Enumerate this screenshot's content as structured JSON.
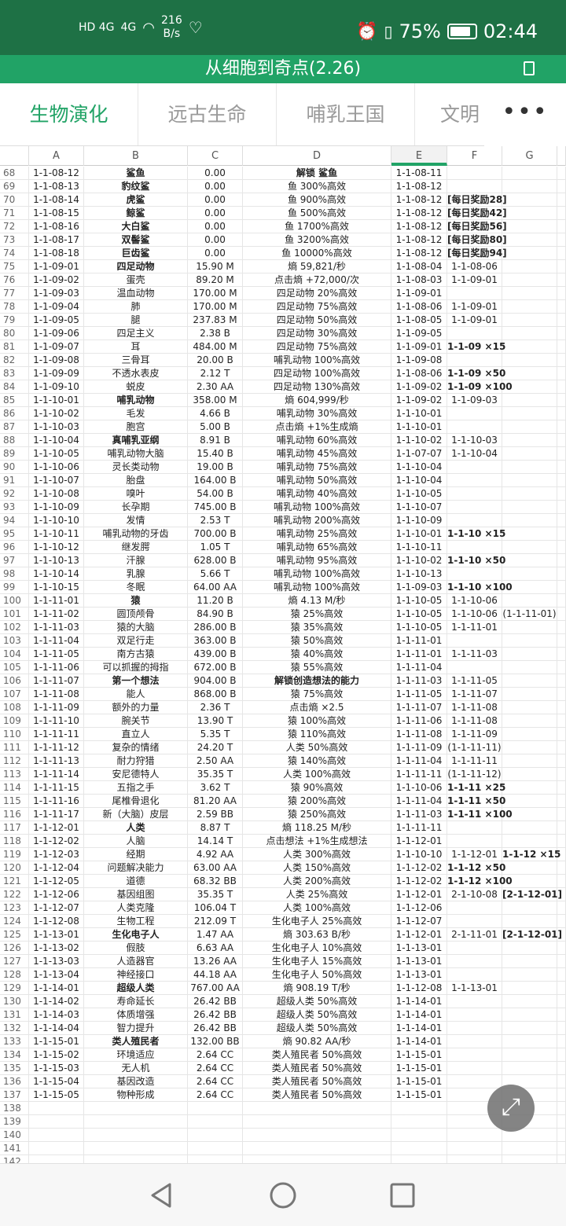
{
  "status_bar": {
    "network_left": "HD 4G",
    "network_right": "4G",
    "speed_value": "216",
    "speed_unit": "B/s",
    "battery": "75%",
    "battery_level": 0.75,
    "time": "02:44"
  },
  "title": "从细胞到奇点(2.26)",
  "tabs": [
    {
      "label": "生物演化",
      "active": true
    },
    {
      "label": "远古生命"
    },
    {
      "label": "哺乳王国"
    },
    {
      "label": "文明"
    }
  ],
  "more_label": "•••",
  "columns": [
    "A",
    "B",
    "C",
    "D",
    "E",
    "F",
    "G"
  ],
  "selected_column": "E",
  "colors": {
    "accent": "#21a366",
    "status_bar": "#1e7145"
  },
  "rows": [
    {
      "n": "68",
      "v": [
        "1-1-08-12",
        "鲨鱼",
        "0.00",
        "解锁 鲨鱼",
        "1-1-08-11",
        "",
        ""
      ],
      "b": [
        1,
        3
      ]
    },
    {
      "n": "69",
      "v": [
        "1-1-08-13",
        "豹纹鲨",
        "0.00",
        "鱼 300%高效",
        "1-1-08-12",
        "",
        ""
      ],
      "b": [
        1
      ]
    },
    {
      "n": "70",
      "v": [
        "1-1-08-14",
        "虎鲨",
        "0.00",
        "鱼 900%高效",
        "1-1-08-12",
        "[每日奖励28]",
        ""
      ],
      "b": [
        1,
        5
      ]
    },
    {
      "n": "71",
      "v": [
        "1-1-08-15",
        "鲸鲨",
        "0.00",
        "鱼 500%高效",
        "1-1-08-12",
        "[每日奖励42]",
        ""
      ],
      "b": [
        1,
        5
      ]
    },
    {
      "n": "72",
      "v": [
        "1-1-08-16",
        "大白鲨",
        "0.00",
        "鱼 1700%高效",
        "1-1-08-12",
        "[每日奖励56]",
        ""
      ],
      "b": [
        1,
        5
      ]
    },
    {
      "n": "73",
      "v": [
        "1-1-08-17",
        "双髻鲨",
        "0.00",
        "鱼 3200%高效",
        "1-1-08-12",
        "[每日奖励80]",
        ""
      ],
      "b": [
        1,
        5
      ]
    },
    {
      "n": "74",
      "v": [
        "1-1-08-18",
        "巨齿鲨",
        "0.00",
        "鱼 10000%高效",
        "1-1-08-12",
        "[每日奖励94]",
        ""
      ],
      "b": [
        1,
        5
      ]
    },
    {
      "n": "75",
      "v": [
        "1-1-09-01",
        "四足动物",
        "15.90 M",
        "熵 59,821/秒",
        "1-1-08-04",
        "1-1-08-06",
        ""
      ],
      "b": [
        1
      ]
    },
    {
      "n": "76",
      "v": [
        "1-1-09-02",
        "蛋壳",
        "89.20 M",
        "点击熵 +72,000/次",
        "1-1-08-03",
        "1-1-09-01",
        ""
      ]
    },
    {
      "n": "77",
      "v": [
        "1-1-09-03",
        "温血动物",
        "170.00 M",
        "四足动物 20%高效",
        "1-1-09-01",
        "",
        ""
      ]
    },
    {
      "n": "78",
      "v": [
        "1-1-09-04",
        "肺",
        "170.00 M",
        "四足动物 75%高效",
        "1-1-08-06",
        "1-1-09-01",
        ""
      ]
    },
    {
      "n": "79",
      "v": [
        "1-1-09-05",
        "腿",
        "237.83 M",
        "四足动物 50%高效",
        "1-1-08-05",
        "1-1-09-01",
        ""
      ]
    },
    {
      "n": "80",
      "v": [
        "1-1-09-06",
        "四足主义",
        "2.38 B",
        "四足动物 30%高效",
        "1-1-09-05",
        "",
        ""
      ]
    },
    {
      "n": "81",
      "v": [
        "1-1-09-07",
        "耳",
        "484.00 M",
        "四足动物 75%高效",
        "1-1-09-01",
        "1-1-09 ×15",
        ""
      ],
      "b": [
        5
      ]
    },
    {
      "n": "82",
      "v": [
        "1-1-09-08",
        "三骨耳",
        "20.00 B",
        "哺乳动物 100%高效",
        "1-1-09-08",
        "",
        ""
      ]
    },
    {
      "n": "83",
      "v": [
        "1-1-09-09",
        "不透水表皮",
        "2.12 T",
        "四足动物 100%高效",
        "1-1-08-06",
        "1-1-09 ×50",
        ""
      ],
      "b": [
        5
      ]
    },
    {
      "n": "84",
      "v": [
        "1-1-09-10",
        "蜕皮",
        "2.30 AA",
        "四足动物 130%高效",
        "1-1-09-02",
        "1-1-09 ×100",
        ""
      ],
      "b": [
        5
      ]
    },
    {
      "n": "85",
      "v": [
        "1-1-10-01",
        "哺乳动物",
        "358.00 M",
        "熵 604,999/秒",
        "1-1-09-02",
        "1-1-09-03",
        ""
      ],
      "b": [
        1
      ]
    },
    {
      "n": "86",
      "v": [
        "1-1-10-02",
        "毛发",
        "4.66 B",
        "哺乳动物 30%高效",
        "1-1-10-01",
        "",
        ""
      ]
    },
    {
      "n": "87",
      "v": [
        "1-1-10-03",
        "胞宫",
        "5.00 B",
        "点击熵 +1%生成熵",
        "1-1-10-01",
        "",
        ""
      ]
    },
    {
      "n": "88",
      "v": [
        "1-1-10-04",
        "真哺乳亚纲",
        "8.91 B",
        "哺乳动物 60%高效",
        "1-1-10-02",
        "1-1-10-03",
        ""
      ],
      "b": [
        1
      ]
    },
    {
      "n": "89",
      "v": [
        "1-1-10-05",
        "哺乳动物大脑",
        "15.40 B",
        "哺乳动物 45%高效",
        "1-1-07-07",
        "1-1-10-04",
        ""
      ]
    },
    {
      "n": "90",
      "v": [
        "1-1-10-06",
        "灵长类动物",
        "19.00 B",
        "哺乳动物 75%高效",
        "1-1-10-04",
        "",
        ""
      ]
    },
    {
      "n": "91",
      "v": [
        "1-1-10-07",
        "胎盘",
        "164.00 B",
        "哺乳动物 50%高效",
        "1-1-10-04",
        "",
        ""
      ]
    },
    {
      "n": "92",
      "v": [
        "1-1-10-08",
        "嗅叶",
        "54.00 B",
        "哺乳动物 40%高效",
        "1-1-10-05",
        "",
        ""
      ]
    },
    {
      "n": "93",
      "v": [
        "1-1-10-09",
        "长孕期",
        "745.00 B",
        "哺乳动物 100%高效",
        "1-1-10-07",
        "",
        ""
      ]
    },
    {
      "n": "94",
      "v": [
        "1-1-10-10",
        "发情",
        "2.53 T",
        "哺乳动物 200%高效",
        "1-1-10-09",
        "",
        ""
      ]
    },
    {
      "n": "95",
      "v": [
        "1-1-10-11",
        "哺乳动物的牙齿",
        "700.00 B",
        "哺乳动物 25%高效",
        "1-1-10-01",
        "1-1-10 ×15",
        ""
      ],
      "b": [
        5
      ]
    },
    {
      "n": "96",
      "v": [
        "1-1-10-12",
        "继发腭",
        "1.05 T",
        "哺乳动物 65%高效",
        "1-1-10-11",
        "",
        ""
      ]
    },
    {
      "n": "97",
      "v": [
        "1-1-10-13",
        "汗腺",
        "628.00 B",
        "哺乳动物 95%高效",
        "1-1-10-02",
        "1-1-10 ×50",
        ""
      ],
      "b": [
        5
      ]
    },
    {
      "n": "98",
      "v": [
        "1-1-10-14",
        "乳腺",
        "5.66 T",
        "哺乳动物 100%高效",
        "1-1-10-13",
        "",
        ""
      ]
    },
    {
      "n": "99",
      "v": [
        "1-1-10-15",
        "冬眠",
        "64.00 AA",
        "哺乳动物 100%高效",
        "1-1-09-03",
        "1-1-10 ×100",
        ""
      ],
      "b": [
        5
      ]
    },
    {
      "n": "100",
      "v": [
        "1-1-11-01",
        "猿",
        "11.20 B",
        "熵 4.13 M/秒",
        "1-1-10-05",
        "1-1-10-06",
        ""
      ],
      "b": [
        1
      ]
    },
    {
      "n": "101",
      "v": [
        "1-1-11-02",
        "圆顶颅骨",
        "84.90 B",
        "猿 25%高效",
        "1-1-10-05",
        "1-1-10-06",
        "(1-1-11-01)"
      ]
    },
    {
      "n": "102",
      "v": [
        "1-1-11-03",
        "猿的大脑",
        "286.00 B",
        "猿 35%高效",
        "1-1-10-05",
        "1-1-11-01",
        ""
      ]
    },
    {
      "n": "103",
      "v": [
        "1-1-11-04",
        "双足行走",
        "363.00 B",
        "猿 50%高效",
        "1-1-11-01",
        "",
        ""
      ]
    },
    {
      "n": "104",
      "v": [
        "1-1-11-05",
        "南方古猿",
        "439.00 B",
        "猿 40%高效",
        "1-1-11-01",
        "1-1-11-03",
        ""
      ]
    },
    {
      "n": "105",
      "v": [
        "1-1-11-06",
        "可以抓握的拇指",
        "672.00 B",
        "猿 55%高效",
        "1-1-11-04",
        "",
        ""
      ]
    },
    {
      "n": "106",
      "v": [
        "1-1-11-07",
        "第一个想法",
        "904.00 B",
        "解锁创造想法的能力",
        "1-1-11-03",
        "1-1-11-05",
        ""
      ],
      "b": [
        1,
        3
      ]
    },
    {
      "n": "107",
      "v": [
        "1-1-11-08",
        "能人",
        "868.00 B",
        "猿 75%高效",
        "1-1-11-05",
        "1-1-11-07",
        ""
      ]
    },
    {
      "n": "108",
      "v": [
        "1-1-11-09",
        "额外的力量",
        "2.36 T",
        "点击熵 ×2.5",
        "1-1-11-07",
        "1-1-11-08",
        ""
      ]
    },
    {
      "n": "109",
      "v": [
        "1-1-11-10",
        "腕关节",
        "13.90 T",
        "猿 100%高效",
        "1-1-11-06",
        "1-1-11-08",
        ""
      ]
    },
    {
      "n": "110",
      "v": [
        "1-1-11-11",
        "直立人",
        "5.35 T",
        "猿 110%高效",
        "1-1-11-08",
        "1-1-11-09",
        ""
      ]
    },
    {
      "n": "111",
      "v": [
        "1-1-11-12",
        "复杂的情绪",
        "24.20 T",
        "人类 50%高效",
        "1-1-11-09",
        "(1-1-11-11)",
        ""
      ]
    },
    {
      "n": "112",
      "v": [
        "1-1-11-13",
        "耐力狩猎",
        "2.50 AA",
        "猿 140%高效",
        "1-1-11-04",
        "1-1-11-11",
        ""
      ]
    },
    {
      "n": "113",
      "v": [
        "1-1-11-14",
        "安尼德特人",
        "35.35 T",
        "人类 100%高效",
        "1-1-11-11",
        "(1-1-11-12)",
        ""
      ]
    },
    {
      "n": "114",
      "v": [
        "1-1-11-15",
        "五指之手",
        "3.62 T",
        "猿 90%高效",
        "1-1-10-06",
        "1-1-11 ×25",
        ""
      ],
      "b": [
        5
      ]
    },
    {
      "n": "115",
      "v": [
        "1-1-11-16",
        "尾椎骨退化",
        "81.20 AA",
        "猿 200%高效",
        "1-1-11-04",
        "1-1-11 ×50",
        ""
      ],
      "b": [
        5
      ]
    },
    {
      "n": "116",
      "v": [
        "1-1-11-17",
        "新（大脑）皮层",
        "2.59 BB",
        "猿 250%高效",
        "1-1-11-03",
        "1-1-11 ×100",
        ""
      ],
      "b": [
        5
      ]
    },
    {
      "n": "117",
      "v": [
        "1-1-12-01",
        "人类",
        "8.87 T",
        "熵 118.25 M/秒",
        "1-1-11-11",
        "",
        ""
      ],
      "b": [
        1
      ]
    },
    {
      "n": "118",
      "v": [
        "1-1-12-02",
        "人脑",
        "14.14 T",
        "点击想法 +1%生成想法",
        "1-1-12-01",
        "",
        ""
      ]
    },
    {
      "n": "119",
      "v": [
        "1-1-12-03",
        "经期",
        "4.92 AA",
        "人类 300%高效",
        "1-1-10-10",
        "1-1-12-01",
        "1-1-12 ×15"
      ],
      "b": [
        6
      ]
    },
    {
      "n": "120",
      "v": [
        "1-1-12-04",
        "问题解决能力",
        "63.00 AA",
        "人类 150%高效",
        "1-1-12-02",
        "1-1-12 ×50",
        ""
      ],
      "b": [
        5
      ]
    },
    {
      "n": "121",
      "v": [
        "1-1-12-05",
        "道德",
        "68.32 BB",
        "人类 200%高效",
        "1-1-12-02",
        "1-1-12 ×100",
        ""
      ],
      "b": [
        5
      ]
    },
    {
      "n": "122",
      "v": [
        "1-1-12-06",
        "基因组图",
        "35.35 T",
        "人类 25%高效",
        "1-1-12-01",
        "2-1-10-08",
        "[2-1-12-01]"
      ],
      "b": [
        6
      ]
    },
    {
      "n": "123",
      "v": [
        "1-1-12-07",
        "人类克隆",
        "106.04 T",
        "人类 100%高效",
        "1-1-12-06",
        "",
        ""
      ]
    },
    {
      "n": "124",
      "v": [
        "1-1-12-08",
        "生物工程",
        "212.09 T",
        "生化电子人 25%高效",
        "1-1-12-07",
        "",
        ""
      ]
    },
    {
      "n": "125",
      "v": [
        "1-1-13-01",
        "生化电子人",
        "1.47 AA",
        "熵 303.63 B/秒",
        "1-1-12-01",
        "2-1-11-01",
        "[2-1-12-01]"
      ],
      "b": [
        1,
        6
      ]
    },
    {
      "n": "126",
      "v": [
        "1-1-13-02",
        "假肢",
        "6.63 AA",
        "生化电子人 10%高效",
        "1-1-13-01",
        "",
        ""
      ]
    },
    {
      "n": "127",
      "v": [
        "1-1-13-03",
        "人造器官",
        "13.26 AA",
        "生化电子人 15%高效",
        "1-1-13-01",
        "",
        ""
      ]
    },
    {
      "n": "128",
      "v": [
        "1-1-13-04",
        "神经接口",
        "44.18 AA",
        "生化电子人 50%高效",
        "1-1-13-01",
        "",
        ""
      ]
    },
    {
      "n": "129",
      "v": [
        "1-1-14-01",
        "超级人类",
        "767.00 AA",
        "熵 908.19 T/秒",
        "1-1-12-08",
        "1-1-13-01",
        ""
      ],
      "b": [
        1
      ]
    },
    {
      "n": "130",
      "v": [
        "1-1-14-02",
        "寿命延长",
        "26.42 BB",
        "超级人类 50%高效",
        "1-1-14-01",
        "",
        ""
      ]
    },
    {
      "n": "131",
      "v": [
        "1-1-14-03",
        "体质增强",
        "26.42 BB",
        "超级人类 50%高效",
        "1-1-14-01",
        "",
        ""
      ]
    },
    {
      "n": "132",
      "v": [
        "1-1-14-04",
        "智力提升",
        "26.42 BB",
        "超级人类 50%高效",
        "1-1-14-01",
        "",
        ""
      ]
    },
    {
      "n": "133",
      "v": [
        "1-1-15-01",
        "类人殖民者",
        "132.00 BB",
        "熵 90.82 AA/秒",
        "1-1-14-01",
        "",
        ""
      ],
      "b": [
        1
      ]
    },
    {
      "n": "134",
      "v": [
        "1-1-15-02",
        "环境适应",
        "2.64 CC",
        "类人殖民者 50%高效",
        "1-1-15-01",
        "",
        ""
      ]
    },
    {
      "n": "135",
      "v": [
        "1-1-15-03",
        "无人机",
        "2.64 CC",
        "类人殖民者 50%高效",
        "1-1-15-01",
        "",
        ""
      ]
    },
    {
      "n": "136",
      "v": [
        "1-1-15-04",
        "基因改造",
        "2.64 CC",
        "类人殖民者 50%高效",
        "1-1-15-01",
        "",
        ""
      ]
    },
    {
      "n": "137",
      "v": [
        "1-1-15-05",
        "物种形成",
        "2.64 CC",
        "类人殖民者 50%高效",
        "1-1-15-01",
        "",
        ""
      ]
    },
    {
      "n": "138",
      "v": [
        "",
        "",
        "",
        "",
        "",
        "",
        ""
      ]
    },
    {
      "n": "139",
      "v": [
        "",
        "",
        "",
        "",
        "",
        "",
        ""
      ]
    },
    {
      "n": "140",
      "v": [
        "",
        "",
        "",
        "",
        "",
        "",
        ""
      ]
    },
    {
      "n": "141",
      "v": [
        "",
        "",
        "",
        "",
        "",
        "",
        ""
      ]
    },
    {
      "n": "142",
      "v": [
        "",
        "",
        "",
        "",
        "",
        "",
        ""
      ]
    }
  ]
}
